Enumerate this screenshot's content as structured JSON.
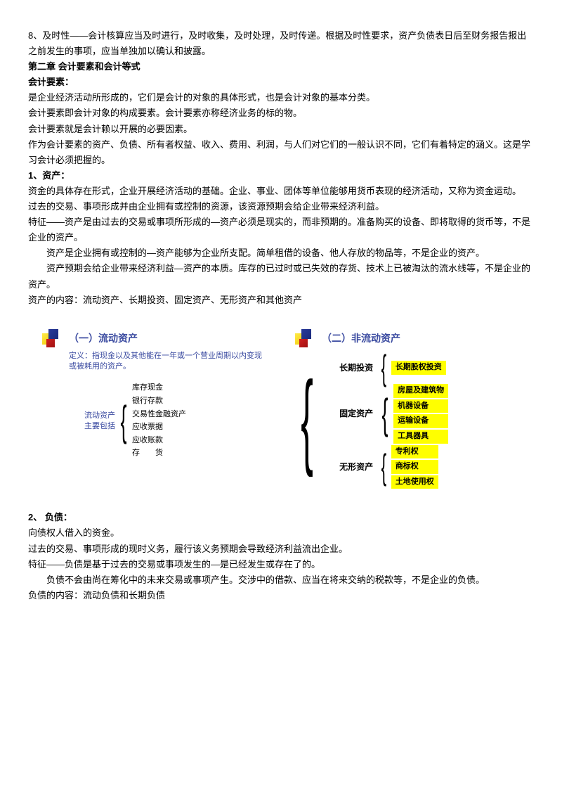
{
  "intro": {
    "line1": "8、及时性——会计核算应当及时进行，及时收集，及时处理，及时传递。根据及时性要求，资产负债表日后至财务报告报出之前发生的事项，应当单独加以确认和披露。",
    "chapter": "第二章 会计要素和会计等式",
    "heading1": "会计要素：",
    "p1": "是企业经济活动所形成的，它们是会计的对象的具体形式，也是会计对象的基本分类。",
    "p2": "会计要素即会计对象的构成要素。会计要素亦称经济业务的标的物。",
    "p3": "会计要素就是会计赖以开展的必要因素。",
    "p4": "作为会计要素的资产、负债、所有者权益、收入、费用、利润，与人们对它们的一般认识不同，它们有着特定的涵义。这是学习会计必须把握的。"
  },
  "asset": {
    "title": "1、资产：",
    "p1": "资金的具体存在形式，企业开展经济活动的基础。企业、事业、团体等单位能够用货币表现的经济活动，又称为资金运动。",
    "p2": "过去的交易、事项形成并由企业拥有或控制的资源，该资源预期会给企业带来经济利益。",
    "p3": "特征——资产是由过去的交易或事项所形成的—资产必须是现实的，而非预期的。准备购买的设备、即将取得的货币等，不是企业的资产。",
    "p4": "资产是企业拥有或控制的—资产能够为企业所支配。简单租借的设备、他人存放的物品等，不是企业的资产。",
    "p5": "资产预期会给企业带来经济利益—资产的本质。库存的已过时或已失效的存货、技术上已被淘汰的流水线等，不是企业的资产。",
    "p6": "资产的内容：流动资产、长期投资、固定资产、无形资产和其他资产"
  },
  "diagram": {
    "left": {
      "title": "（一）流动资产",
      "definition": "定义：指现金以及其他能在一年或一个营业周期以内变现或被耗用的资产。",
      "sub_label1": "流动资产",
      "sub_label2": "主要包括",
      "items": [
        "库存现金",
        "银行存款",
        "交易性金融资产",
        "应收票据",
        "应收账款",
        "存　　货"
      ]
    },
    "right": {
      "title": "（二）非流动资产",
      "categories": [
        {
          "label": "长期投资",
          "items": [
            "长期股权投资"
          ]
        },
        {
          "label": "固定资产",
          "items": [
            "房屋及建筑物",
            "机器设备",
            "运输设备",
            "工具器具"
          ]
        },
        {
          "label": "无形资产",
          "items": [
            "专利权",
            "商标权",
            "土地使用权"
          ]
        }
      ]
    }
  },
  "liab": {
    "title": "2、 负债：",
    "p1": "向债权人借入的资金。",
    "p2": "过去的交易、事项形成的现时义务，履行该义务预期会导致经济利益流出企业。",
    "p3": "特征——负债是基于过去的交易或事项发生的—是已经发生或存在了的。",
    "p4": "负债不会由尚在筹化中的未来交易或事项产生。交涉中的借款、应当在将来交纳的税款等，不是企业的负债。",
    "p5": "负债的内容：流动负债和长期负债"
  },
  "style": {
    "title_color": "#3a4aa0",
    "highlight_color": "#ffff00"
  }
}
